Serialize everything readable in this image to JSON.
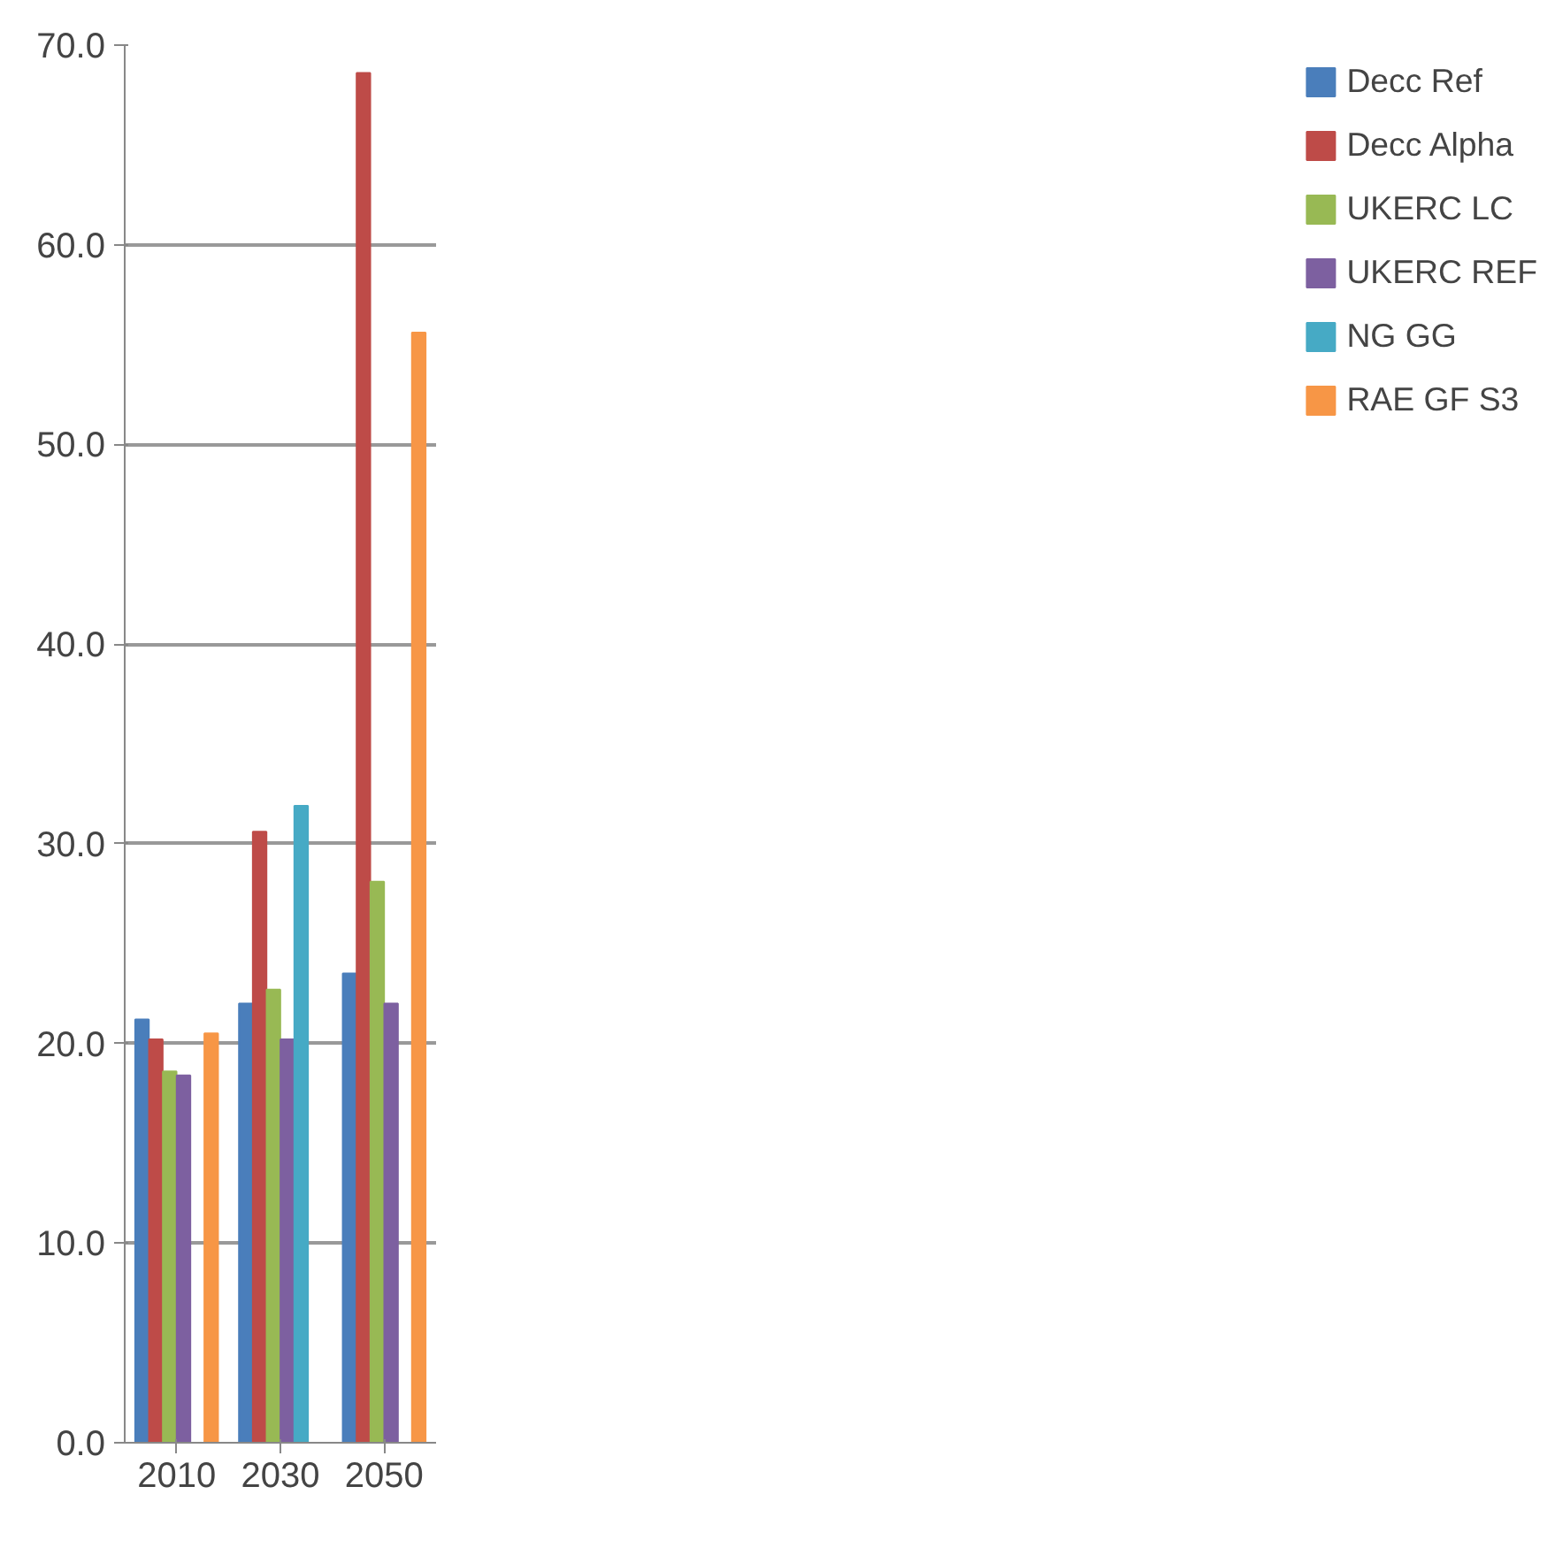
{
  "chart_data": {
    "type": "bar",
    "categories": [
      "2010",
      "2030",
      "2050"
    ],
    "series": [
      {
        "name": "Decc Ref",
        "color": "#4a7ebb",
        "values": [
          21.2,
          22.0,
          23.5
        ]
      },
      {
        "name": "Decc Alpha",
        "color": "#be4b48",
        "values": [
          20.2,
          30.6,
          68.6
        ]
      },
      {
        "name": "UKERC LC",
        "color": "#98b954",
        "values": [
          18.6,
          22.7,
          28.1
        ]
      },
      {
        "name": "UKERC REF",
        "color": "#7d60a0",
        "values": [
          18.4,
          20.2,
          22.0
        ]
      },
      {
        "name": "NG GG",
        "color": "#46aac5",
        "values": [
          0,
          31.9,
          0
        ]
      },
      {
        "name": "RAE GF S3",
        "color": "#f79646",
        "values": [
          20.5,
          0,
          55.6
        ]
      }
    ],
    "ylim": [
      0,
      70
    ],
    "yticks": [
      {
        "value": 0,
        "label": "0.0"
      },
      {
        "value": 10,
        "label": "10.0"
      },
      {
        "value": 20,
        "label": "20.0"
      },
      {
        "value": 30,
        "label": "30.0"
      },
      {
        "value": 40,
        "label": "40.0"
      },
      {
        "value": 50,
        "label": "50.0"
      },
      {
        "value": 60,
        "label": "60.0"
      },
      {
        "value": 70,
        "label": "70.0"
      }
    ],
    "grid": "y",
    "legend": "right"
  }
}
